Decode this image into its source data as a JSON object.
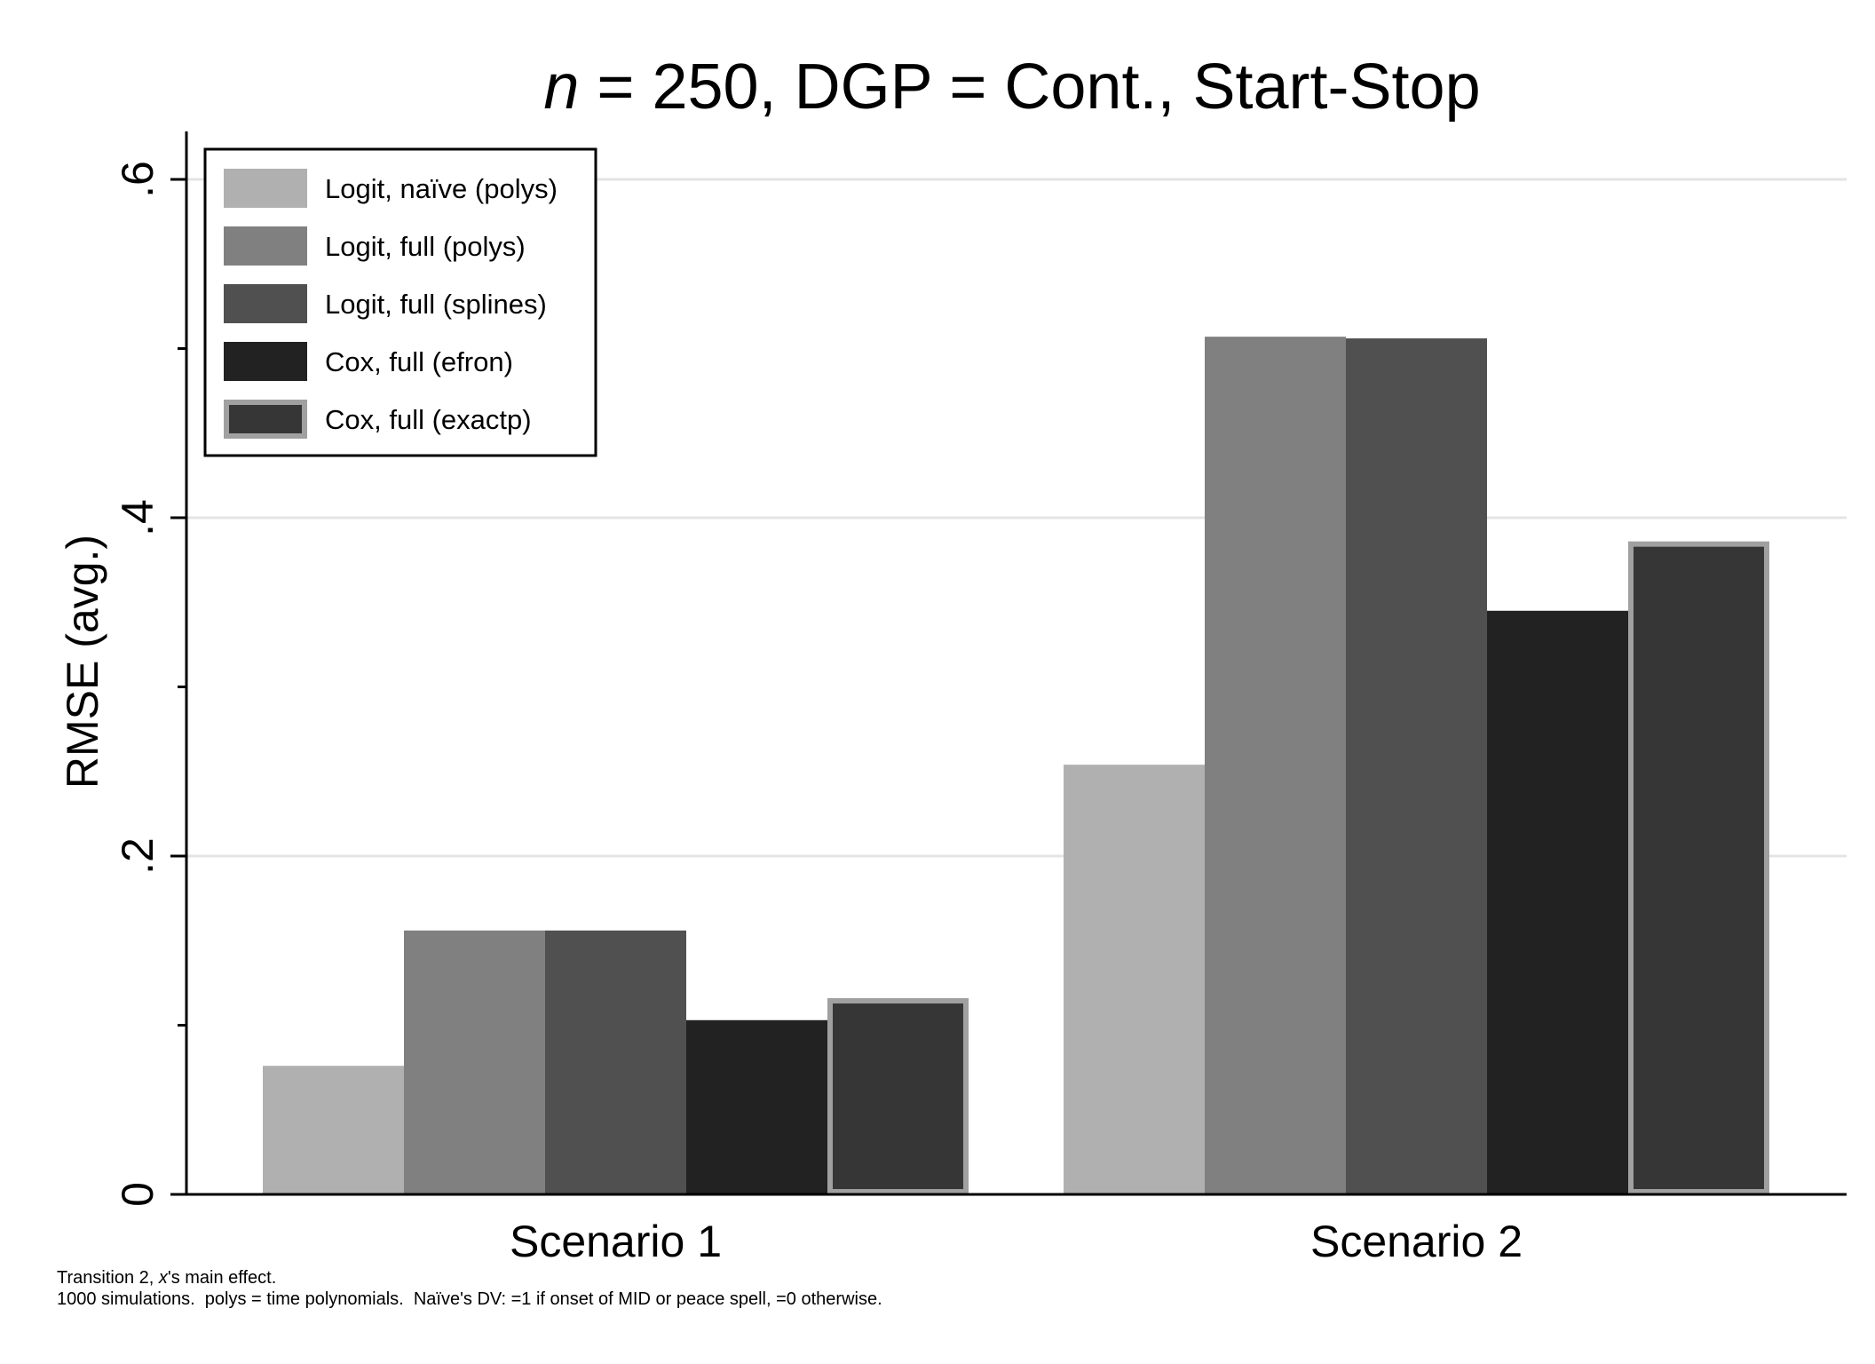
{
  "chart_data": {
    "type": "bar",
    "title_prefix": "n",
    "title_rest": " = 250, DGP = Cont., Start-Stop",
    "xlabel": "",
    "ylabel": "RMSE (avg.)",
    "ylim": [
      0,
      0.63
    ],
    "yticks": [
      {
        "value": 0,
        "label": "0"
      },
      {
        "value": 0.2,
        "label": ".2"
      },
      {
        "value": 0.4,
        "label": ".4"
      },
      {
        "value": 0.6,
        "label": ".6"
      }
    ],
    "minor_ticks": [
      0.1,
      0.3,
      0.5
    ],
    "grid": true,
    "legend_position": "top-left",
    "categories": [
      "Scenario 1",
      "Scenario 2"
    ],
    "series": [
      {
        "name": "Logit, naïve (polys)",
        "color": "#b0b0b0",
        "outlined": false,
        "values": [
          0.076,
          0.254
        ]
      },
      {
        "name": "Logit, full (polys)",
        "color": "#808080",
        "outlined": false,
        "values": [
          0.156,
          0.507
        ]
      },
      {
        "name": "Logit, full (splines)",
        "color": "#505050",
        "outlined": false,
        "values": [
          0.156,
          0.506
        ]
      },
      {
        "name": "Cox, full (efron)",
        "color": "#222222",
        "outlined": false,
        "values": [
          0.103,
          0.345
        ]
      },
      {
        "name": "Cox, full (exactp)",
        "color": "#363636",
        "outline_color": "#a0a0a0",
        "outlined": true,
        "values": [
          0.116,
          0.386
        ]
      }
    ]
  },
  "notes": {
    "line1_a": "Transition 2, ",
    "line1_b": "x",
    "line1_c": "'s main effect.",
    "line2": "1000 simulations.  polys = time polynomials.  Naïve's DV: =1 if onset of MID or peace spell, =0 otherwise."
  }
}
